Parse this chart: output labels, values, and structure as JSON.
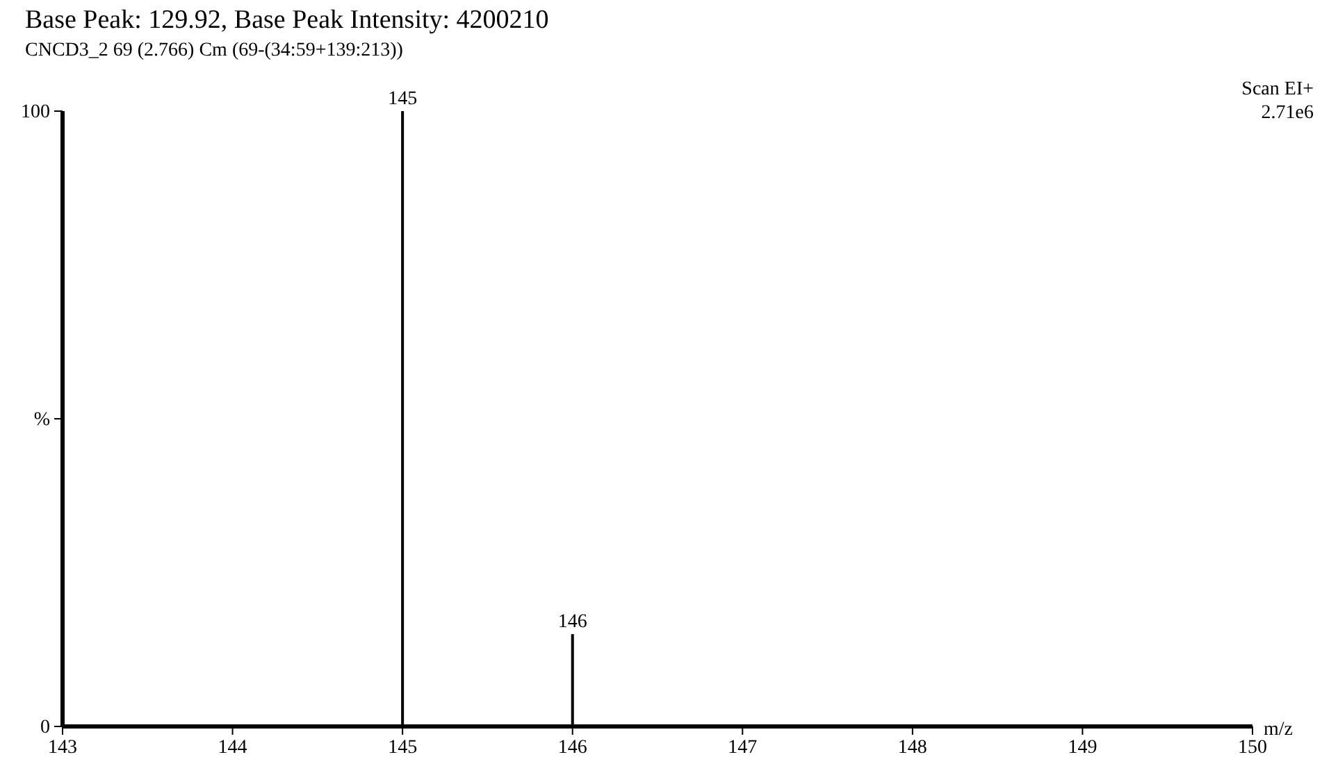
{
  "chart_data": {
    "type": "bar",
    "title": "Base Peak: 129.92, Base Peak Intensity: 4200210",
    "subtitle": "CNCD3_2 69 (2.766) Cm (69-(34:59+139:213))",
    "xlabel": "m/z",
    "annotations": [
      "Scan EI+",
      "2.71e6",
      {
        "text": "145",
        "x": 145,
        "y": 100
      },
      {
        "text": "146",
        "x": 146,
        "y": 15
      }
    ],
    "x": [
      145,
      146
    ],
    "values": [
      100,
      15
    ],
    "color": "#000000",
    "xlim": [
      143,
      150
    ],
    "xticks": [
      143,
      144,
      145,
      146,
      147,
      148,
      149,
      150
    ],
    "ylim": [
      0,
      100
    ],
    "yticks": [
      0,
      {
        "value": 50,
        "label": "%"
      },
      100
    ],
    "grid": false
  }
}
